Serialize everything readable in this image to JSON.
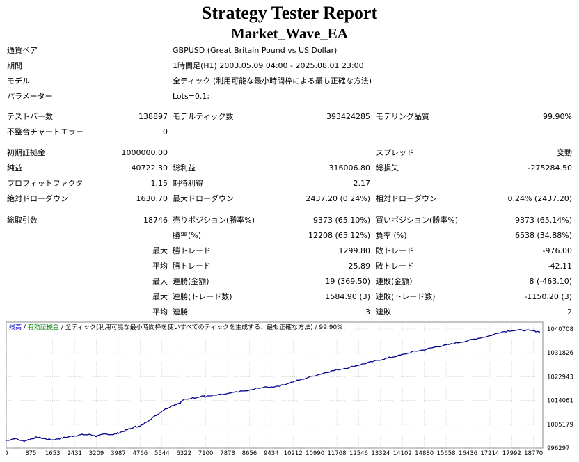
{
  "title": "Strategy Tester Report",
  "ea_name": "Market_Wave_EA",
  "info": [
    {
      "label": "通貨ペア",
      "value": "GBPUSD (Great Britain Pound vs US Dollar)"
    },
    {
      "label": "期間",
      "value": "1時間足(H1) 2003.05.09 04:00 - 2025.08.01 23:00"
    },
    {
      "label": "モデル",
      "value": "全ティック (利用可能な最小時間枠による最も正確な方法)"
    },
    {
      "label": "パラメーター",
      "value": "Lots=0.1;"
    }
  ],
  "stats": {
    "bars_label": "テストバー数",
    "bars": "138897",
    "ticks_label": "モデルティック数",
    "ticks": "393424285",
    "quality_label": "モデリング品質",
    "quality": "99.90%",
    "mismatch_label": "不整合チャートエラー",
    "mismatch": "0",
    "deposit_label": "初期証拠金",
    "deposit": "1000000.00",
    "spread_label": "スプレッド",
    "spread": "変動",
    "net_label": "純益",
    "net": "40722.30",
    "gross_profit_label": "総利益",
    "gross_profit": "316006.80",
    "gross_loss_label": "総損失",
    "gross_loss": "-275284.50",
    "pf_label": "プロフィットファクタ",
    "pf": "1.15",
    "expected_label": "期待利得",
    "expected": "2.17",
    "abs_dd_label": "絶対ドローダウン",
    "abs_dd": "1630.70",
    "max_dd_label": "最大ドローダウン",
    "max_dd": "2437.20 (0.24%)",
    "rel_dd_label": "相対ドローダウン",
    "rel_dd": "0.24% (2437.20)",
    "trades_label": "総取引数",
    "trades": "18746",
    "short_label": "売りポジション(勝率%)",
    "short": "9373 (65.10%)",
    "long_label": "買いポジション(勝率%)",
    "long": "9373 (65.14%)",
    "win_pct_label": "勝率(%)",
    "win_pct": "12208 (65.12%)",
    "loss_pct_label": "負率 (%)",
    "loss_pct": "6538 (34.88%)",
    "max1": "最大",
    "largest_win_label": "勝トレード",
    "largest_win": "1299.80",
    "largest_loss_label": "敗トレード",
    "largest_loss": "-976.00",
    "avg1": "平均",
    "avg_win_label": "勝トレード",
    "avg_win": "25.89",
    "avg_loss_label": "敗トレード",
    "avg_loss": "-42.11",
    "max2": "最大",
    "cons_wins_money_label": "連勝(金額)",
    "cons_wins_money": "19 (369.50)",
    "cons_loss_money_label": "連敗(金額)",
    "cons_loss_money": "8 (-463.10)",
    "max3": "最大",
    "cons_wins_count_label": "連勝(トレード数)",
    "cons_wins_count": "1584.90 (3)",
    "cons_loss_count_label": "連敗(トレード数)",
    "cons_loss_count": "-1150.20 (3)",
    "avg2": "平均",
    "avg_cons_wins_label": "連勝",
    "avg_cons_wins": "3",
    "avg_cons_loss_label": "連敗",
    "avg_cons_loss": "2"
  },
  "chart_legend": {
    "balance": "残高",
    "sep1": "/",
    "equity": "有効証拠金",
    "sep2": "/",
    "model": "全ティック(利用可能な最小時間枠を使いすべてのティックを生成する、最も正確な方法)",
    "sep3": "/",
    "quality": "99.90%"
  },
  "colors": {
    "line": "#00008b",
    "grid": "#c8c8c8",
    "legend_balance": "#0000c0",
    "legend_equity": "#008000"
  },
  "chart_data": {
    "type": "line",
    "title": "",
    "xlabel": "",
    "ylabel": "",
    "x_ticks": [
      0,
      875,
      1653,
      2431,
      3209,
      3987,
      4766,
      5544,
      6322,
      7100,
      7878,
      8656,
      9434,
      10212,
      10990,
      11768,
      12546,
      13324,
      14102,
      14880,
      15658,
      16436,
      17214,
      17992,
      18770
    ],
    "y_ticks": [
      996297,
      1005179,
      1014061,
      1022943,
      1031826,
      1040708
    ],
    "xlim": [
      0,
      19100
    ],
    "ylim": [
      996297,
      1040708
    ],
    "series": [
      {
        "values_x": [
          0,
          300,
          600,
          875,
          1100,
          1400,
          1653,
          1900,
          2200,
          2431,
          2700,
          3000,
          3209,
          3500,
          3800,
          3987,
          4300,
          4600,
          4766,
          5100,
          5400,
          5544,
          5900,
          6200,
          6322,
          6700,
          7000,
          7100,
          7500,
          7878,
          8200,
          8656,
          9000,
          9434,
          9800,
          10212,
          10500,
          10990,
          11400,
          11768,
          12200,
          12546,
          12900,
          13324,
          13700,
          14102,
          14500,
          14880,
          15300,
          15658,
          16000,
          16436,
          16800,
          17214,
          17600,
          17992,
          18400,
          18770,
          19000
        ],
        "values_y": [
          999100,
          999900,
          998900,
          999700,
          1000400,
          999700,
          999400,
          999900,
          1000500,
          1000900,
          1001300,
          1001300,
          1000700,
          1001500,
          1001400,
          1001900,
          1003100,
          1004300,
          1004400,
          1006900,
          1008900,
          1010200,
          1012100,
          1013300,
          1014400,
          1015100,
          1015800,
          1015500,
          1016100,
          1016500,
          1017300,
          1017800,
          1018800,
          1019100,
          1019700,
          1021100,
          1021900,
          1023400,
          1024600,
          1025500,
          1026400,
          1027300,
          1028200,
          1029300,
          1030200,
          1031100,
          1032300,
          1033000,
          1034100,
          1034700,
          1035500,
          1036400,
          1037300,
          1038200,
          1039600,
          1040200,
          1040300,
          1040000,
          1039700
        ]
      }
    ]
  }
}
